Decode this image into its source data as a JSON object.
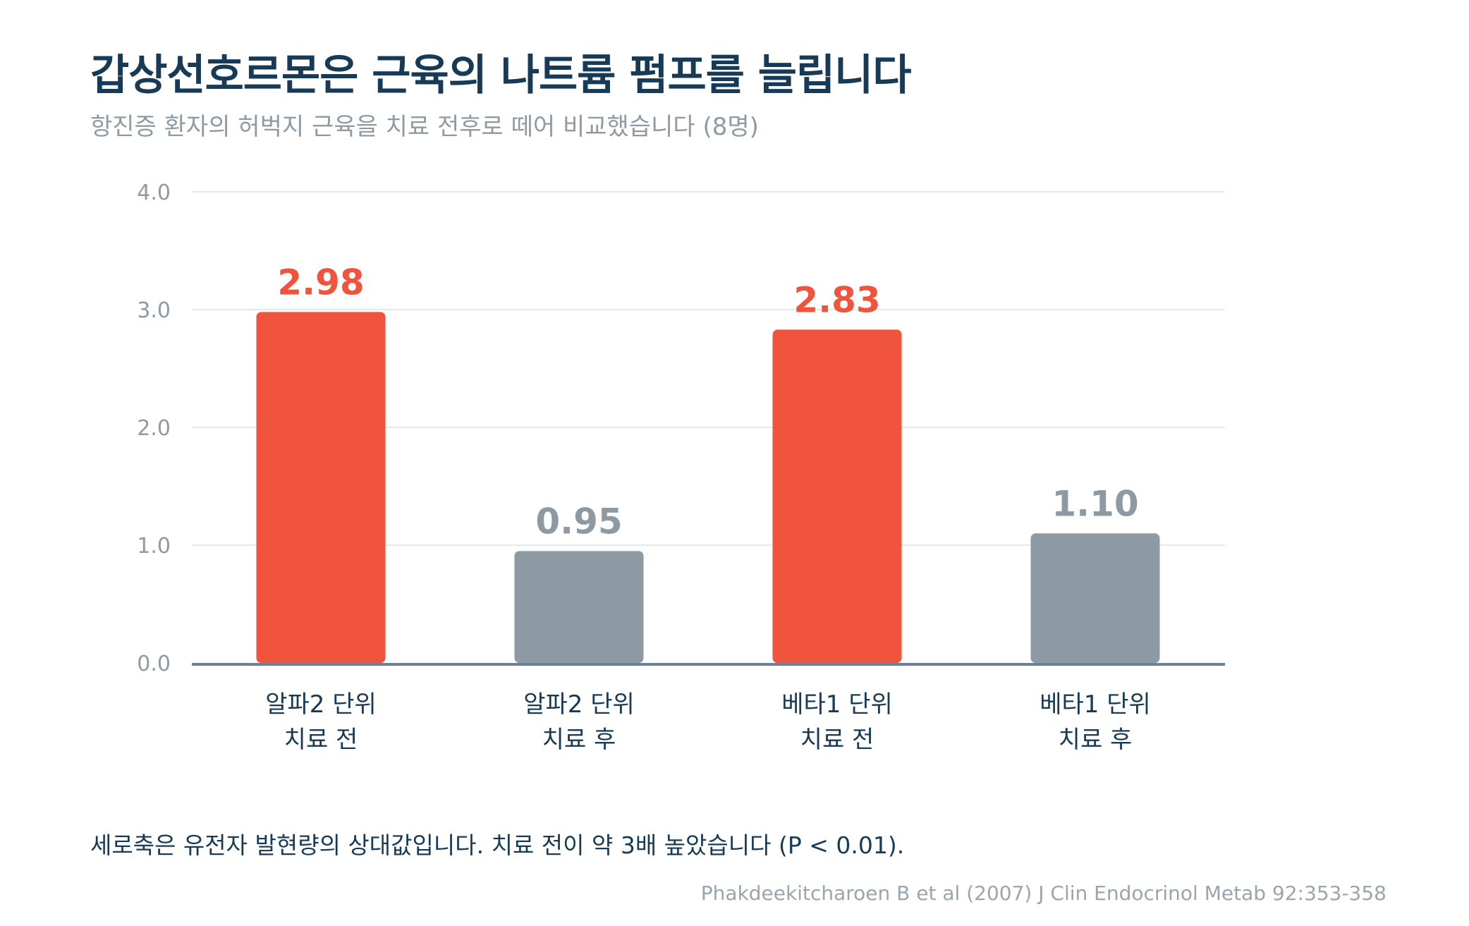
{
  "title": "갑상선호르몬은 근육의 나트륨 펌프를 늘립니다",
  "subtitle": "항진증 환자의 허벅지 근육을 치료 전후로 떼어 비교했습니다 (8명)",
  "note": "세로축은 유전자 발현량의 상대값입니다. 치료 전이 약 3배 높았습니다 (P < 0.01).",
  "source": "Phakdeekitcharoen B et al (2007) J Clin Endocrinol Metab 92:353-358",
  "colors": {
    "highlight": "#f0543c",
    "muted": "#8d9aa4",
    "grid": "#e6e9ec",
    "axis": "#6b8099",
    "tick_label": "#8e9aa4",
    "category_label": "#173a57"
  },
  "chart_data": {
    "type": "bar",
    "categories": [
      [
        "알파2 단위",
        "치료 전"
      ],
      [
        "알파2 단위",
        "치료 후"
      ],
      [
        "베타1 단위",
        "치료 전"
      ],
      [
        "베타1 단위",
        "치료 후"
      ]
    ],
    "values": [
      2.98,
      0.95,
      2.83,
      1.1
    ],
    "value_labels": [
      "2.98",
      "0.95",
      "2.83",
      "1.10"
    ],
    "bar_colors": [
      "highlight",
      "muted",
      "highlight",
      "muted"
    ],
    "y_ticks": [
      "0.0",
      "1.0",
      "2.0",
      "3.0",
      "4.0"
    ],
    "ylim": [
      0,
      4
    ],
    "grid": true,
    "legend": "none",
    "xlabel": "",
    "ylabel": ""
  }
}
